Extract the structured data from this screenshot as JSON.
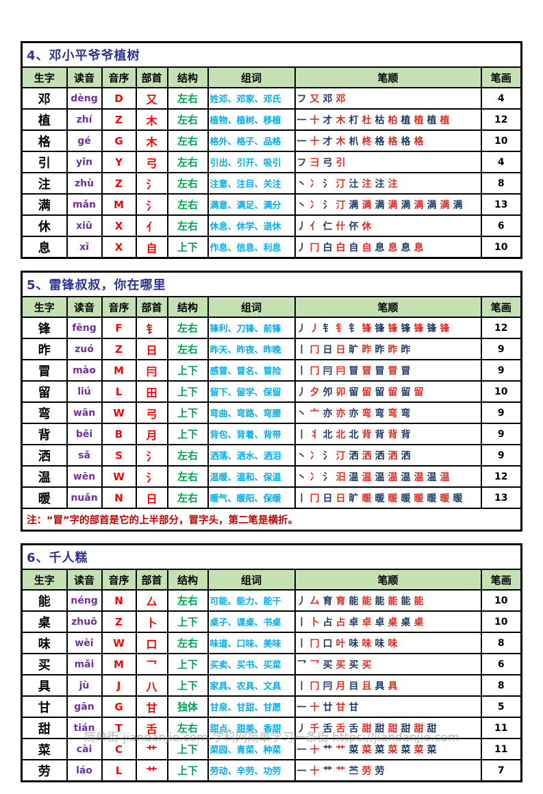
{
  "page": {
    "watermark": "简单街-jiandanjie.com-学科网简单学习一条街 https://jiandanjie.com"
  },
  "colors": {
    "title_blue": "#2e3192",
    "header_green_bg": "#c5e0b3",
    "char_yellow_bg": "#fdf2cf",
    "pinyin_purple": "#7030a0",
    "red": "#ff0000",
    "structure_green": "#00a651",
    "words_cyan": "#00aeef",
    "stroke_navy": "#1f3864",
    "stroke_red": "#e02b20",
    "note_red": "#c00000"
  },
  "columns": [
    "生字",
    "读音",
    "音序",
    "部首",
    "结构",
    "组词",
    "笔顺",
    "笔画"
  ],
  "tables": [
    {
      "title": "4、邓小平爷爷植树",
      "note": null,
      "rows": [
        {
          "char": "邓",
          "pinyin": "dèng",
          "initial": "D",
          "radical": "又",
          "structure": "左右",
          "words": "姓邓、邓家、邓氏",
          "strokes": "フ 又 邓 邓",
          "count": "4"
        },
        {
          "char": "植",
          "pinyin": "zhí",
          "initial": "Z",
          "radical": "木",
          "structure": "左右",
          "words": "植物、植树、移植",
          "strokes": "一 十 才 木 朾 杜 枯 柏 植 植 植 植",
          "count": "12"
        },
        {
          "char": "格",
          "pinyin": "gé",
          "initial": "G",
          "radical": "木",
          "structure": "左右",
          "words": "格外、格子、品格",
          "strokes": "一 十 才 木 朳 柊 格 格 格 格",
          "count": "10"
        },
        {
          "char": "引",
          "pinyin": "yǐn",
          "initial": "Y",
          "radical": "弓",
          "structure": "左右",
          "words": "引出、引开、吸引",
          "strokes": "フ 彐 弓 引",
          "count": "4"
        },
        {
          "char": "注",
          "pinyin": "zhù",
          "initial": "Z",
          "radical": "氵",
          "structure": "左右",
          "words": "注意、注目、关注",
          "strokes": "丶 冫 氵 汀 汢 注 注 注",
          "count": "8"
        },
        {
          "char": "满",
          "pinyin": "mǎn",
          "initial": "M",
          "radical": "氵",
          "structure": "左右",
          "words": "满意、满足、满分",
          "strokes": "丶 冫 氵 汀 满 满 满 满 满 满 满 满 满",
          "count": "13"
        },
        {
          "char": "休",
          "pinyin": "xiū",
          "initial": "X",
          "radical": "亻",
          "structure": "左右",
          "words": "休息、休学、退休",
          "strokes": "丿 亻 仁 什 伓 休",
          "count": "6"
        },
        {
          "char": "息",
          "pinyin": "xī",
          "initial": "X",
          "radical": "自",
          "structure": "上下",
          "words": "作息、信息、利息",
          "strokes": "丿 冂 白 白 自 自 息 息 息 息",
          "count": "10"
        }
      ]
    },
    {
      "title": "5、雷锋叔叔，你在哪里",
      "note": "注：“冒”字的部首是它的上半部分，冒字头，第二笔是横折。",
      "rows": [
        {
          "char": "锋",
          "pinyin": "fēng",
          "initial": "F",
          "radical": "钅",
          "structure": "左右",
          "words": "锋利、刀锋、前锋",
          "strokes": "丿 丿 钅 钅 钅 锋 锋 锋 锋 锋 锋 锋",
          "count": "12"
        },
        {
          "char": "昨",
          "pinyin": "zuó",
          "initial": "Z",
          "radical": "日",
          "structure": "左右",
          "words": "昨天、昨夜、昨晚",
          "strokes": "丨 冂 日 日 旷 昨 昨 昨 昨",
          "count": "9"
        },
        {
          "char": "冒",
          "pinyin": "mào",
          "initial": "M",
          "radical": "冃",
          "structure": "上下",
          "words": "感冒、冒名、冒险",
          "strokes": "丨 冂 冃 冃 冒 冒 冒 冒 冒",
          "count": "9"
        },
        {
          "char": "留",
          "pinyin": "liú",
          "initial": "L",
          "radical": "田",
          "structure": "上下",
          "words": "留下、留学、保留",
          "strokes": "丿 夕 夘 卯 留 留 留 留 留 留",
          "count": "10"
        },
        {
          "char": "弯",
          "pinyin": "wān",
          "initial": "W",
          "radical": "弓",
          "structure": "上下",
          "words": "弯曲、弯路、弯腰",
          "strokes": "丶 亠 亦 亦 亦 弯 弯 弯 弯",
          "count": "9"
        },
        {
          "char": "背",
          "pinyin": "bēi",
          "initial": "B",
          "radical": "月",
          "structure": "上下",
          "words": "背包、背着、背带",
          "strokes": "丨 丬 北 北 北 背 背 背 背",
          "count": "9"
        },
        {
          "char": "洒",
          "pinyin": "sǎ",
          "initial": "S",
          "radical": "氵",
          "structure": "左右",
          "words": "洒落、洒水、洒泪",
          "strokes": "丶 冫 氵 汀 洒 洒 洒 洒 洒",
          "count": "9"
        },
        {
          "char": "温",
          "pinyin": "wēn",
          "initial": "W",
          "radical": "氵",
          "structure": "左右",
          "words": "温暖、温和、保温",
          "strokes": "丶 冫 氵 汨 温 温 温 温 温 温 温 温",
          "count": "12"
        },
        {
          "char": "暖",
          "pinyin": "nuǎn",
          "initial": "N",
          "radical": "日",
          "structure": "左右",
          "words": "暖气、暖阳、保暖",
          "strokes": "丨 冂 日 日 旷 暖 暖 暖 暖 暖 暖 暖 暖",
          "count": "13"
        }
      ]
    },
    {
      "title": "6、千人糕",
      "note": null,
      "rows": [
        {
          "char": "能",
          "pinyin": "néng",
          "initial": "N",
          "radical": "厶",
          "structure": "左右",
          "words": "可能、能力、能干",
          "strokes": "丿 厶 育 育 能 能 能 能 能 能",
          "count": "10"
        },
        {
          "char": "桌",
          "pinyin": "zhuō",
          "initial": "Z",
          "radical": "卜",
          "structure": "上下",
          "words": "桌子、课桌、书桌",
          "strokes": "丨 卜 占 占 卓 卓 卓 桌 桌 桌",
          "count": "10"
        },
        {
          "char": "味",
          "pinyin": "wèi",
          "initial": "W",
          "radical": "口",
          "structure": "左右",
          "words": "味道、口味、美味",
          "strokes": "丨 冂 口 叶 味 味 味 味",
          "count": "8"
        },
        {
          "char": "买",
          "pinyin": "mǎi",
          "initial": "M",
          "radical": "乛",
          "structure": "上下",
          "words": "买卖、买书、买菜",
          "strokes": "乛 乛 买 买 买 买",
          "count": "6"
        },
        {
          "char": "具",
          "pinyin": "jù",
          "initial": "J",
          "radical": "八",
          "structure": "上下",
          "words": "家具、农具、文具",
          "strokes": "丨 冂 冃 月 目 且 具 具",
          "count": "8"
        },
        {
          "char": "甘",
          "pinyin": "gān",
          "initial": "G",
          "radical": "甘",
          "structure": "独体",
          "words": "甘泉、甘甜、甘愿",
          "strokes": "一 十 廿 甘 甘",
          "count": "5"
        },
        {
          "char": "甜",
          "pinyin": "tián",
          "initial": "T",
          "radical": "舌",
          "structure": "左右",
          "words": "甜点、甜美、香甜",
          "strokes": "丿 千 舌 舌 舌 甜 甜 甜 甜 甜 甜",
          "count": "11"
        },
        {
          "char": "菜",
          "pinyin": "cài",
          "initial": "C",
          "radical": "艹",
          "structure": "上下",
          "words": "菜园、青菜、种菜",
          "strokes": "一 十 艹 艹 菜 菜 菜 菜 菜 菜 菜",
          "count": "11"
        },
        {
          "char": "劳",
          "pinyin": "láo",
          "initial": "L",
          "radical": "艹",
          "structure": "上下",
          "words": "劳动、辛劳、功劳",
          "strokes": "一 十 艹 艹 苎 劳 劳",
          "count": "7"
        }
      ]
    }
  ]
}
